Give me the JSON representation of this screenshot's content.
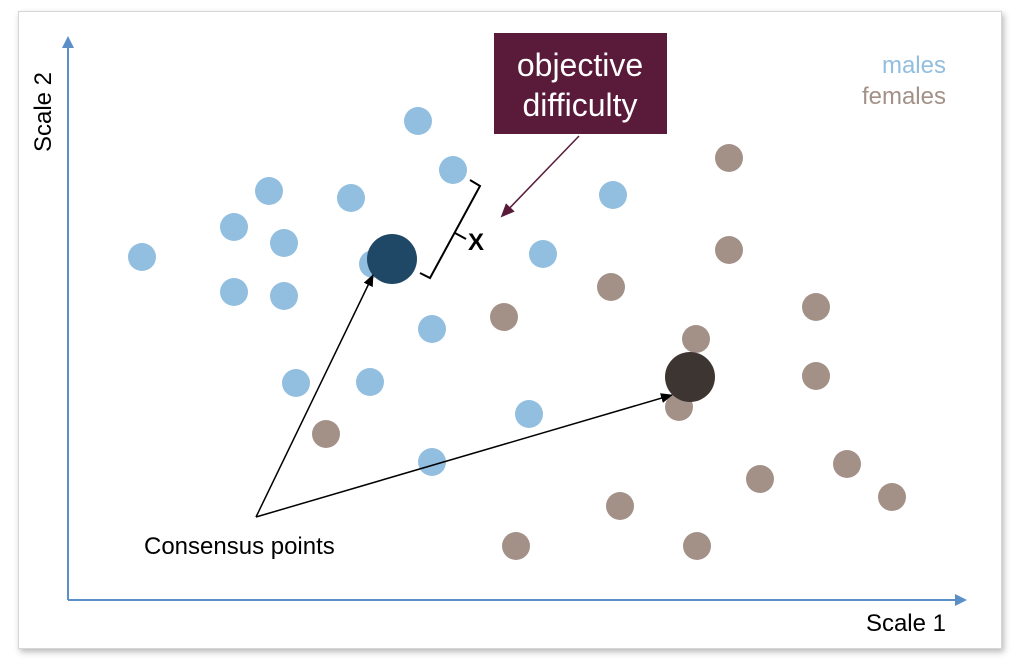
{
  "axes": {
    "x_label": "Scale 1",
    "y_label": "Scale 2"
  },
  "legend": [
    {
      "label": "males",
      "color": "#92bedf"
    },
    {
      "label": "females",
      "color": "#a39188"
    }
  ],
  "annotation": {
    "box_lines": [
      "objective",
      "difficulty"
    ],
    "box_color": "#5a1a3a",
    "arrow_color": "#5a1a3a",
    "distance_label": "X",
    "consensus_label": "Consensus points"
  },
  "colors": {
    "male": "#92bedf",
    "female": "#a39188",
    "male_consensus": "#1f4766",
    "female_consensus": "#3d3532",
    "axis": "#5b8fc7"
  }
}
